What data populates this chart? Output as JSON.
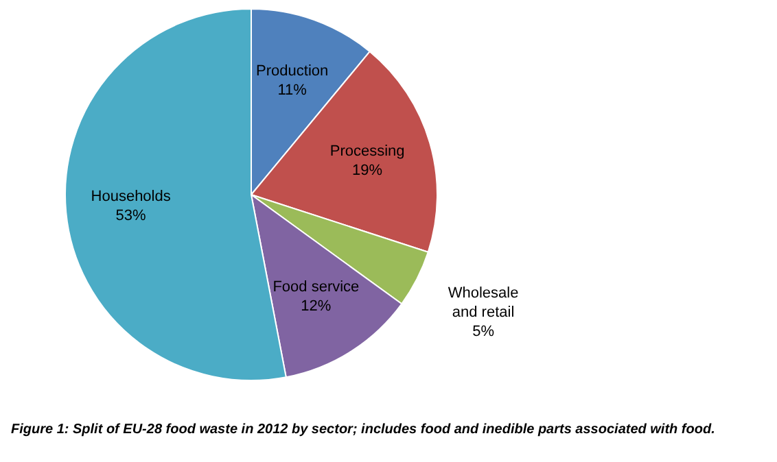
{
  "chart_data": {
    "type": "pie",
    "categories": [
      "Production",
      "Processing",
      "Wholesale and retail",
      "Food service",
      "Households"
    ],
    "values": [
      11,
      19,
      5,
      12,
      53
    ],
    "colors": [
      "#4f81bd",
      "#c0504d",
      "#9bbb59",
      "#8064a2",
      "#4bacc6"
    ],
    "value_labels": [
      "11%",
      "19%",
      "5%",
      "12%",
      "53%"
    ],
    "legend": false,
    "annotations": [
      "Figure 1: Split of EU-28 food waste in 2012 by sector; includes food and inedible parts associated with food."
    ]
  }
}
